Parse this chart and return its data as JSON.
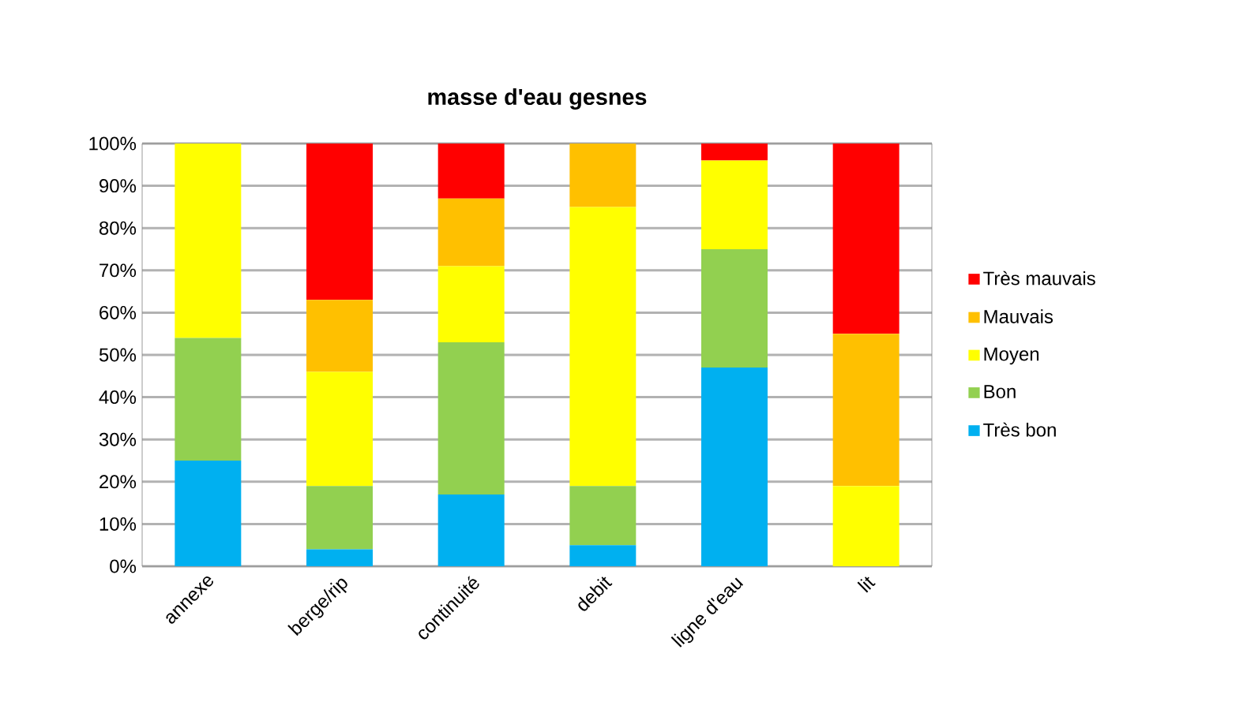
{
  "chart_data": {
    "type": "bar",
    "title": "masse d'eau gesnes",
    "stacked": true,
    "categories": [
      "annexe",
      "berge/rip",
      "continuité",
      "debit",
      "ligne d'eau",
      "lit"
    ],
    "series": [
      {
        "name": "Très bon",
        "color": "#00b0f0",
        "values": [
          25,
          4,
          17,
          5,
          47,
          0
        ]
      },
      {
        "name": "Bon",
        "color": "#92d050",
        "values": [
          29,
          15,
          36,
          14,
          28,
          0
        ]
      },
      {
        "name": "Moyen",
        "color": "#ffff00",
        "values": [
          46,
          27,
          18,
          66,
          21,
          19
        ]
      },
      {
        "name": "Mauvais",
        "color": "#ffc000",
        "values": [
          0,
          17,
          16,
          15,
          0,
          36
        ]
      },
      {
        "name": "Très mauvais",
        "color": "#ff0000",
        "values": [
          0,
          37,
          13,
          0,
          4,
          45
        ]
      }
    ],
    "ylim": [
      0,
      100
    ],
    "yticks": [
      {
        "value": 0,
        "label": "0%"
      },
      {
        "value": 10,
        "label": "10%"
      },
      {
        "value": 20,
        "label": "20%"
      },
      {
        "value": 30,
        "label": "30%"
      },
      {
        "value": 40,
        "label": "40%"
      },
      {
        "value": 50,
        "label": "50%"
      },
      {
        "value": 60,
        "label": "60%"
      },
      {
        "value": 70,
        "label": "70%"
      },
      {
        "value": 80,
        "label": "80%"
      },
      {
        "value": 90,
        "label": "90%"
      },
      {
        "value": 100,
        "label": "100%"
      }
    ],
    "grid": "y",
    "legend": "right"
  }
}
